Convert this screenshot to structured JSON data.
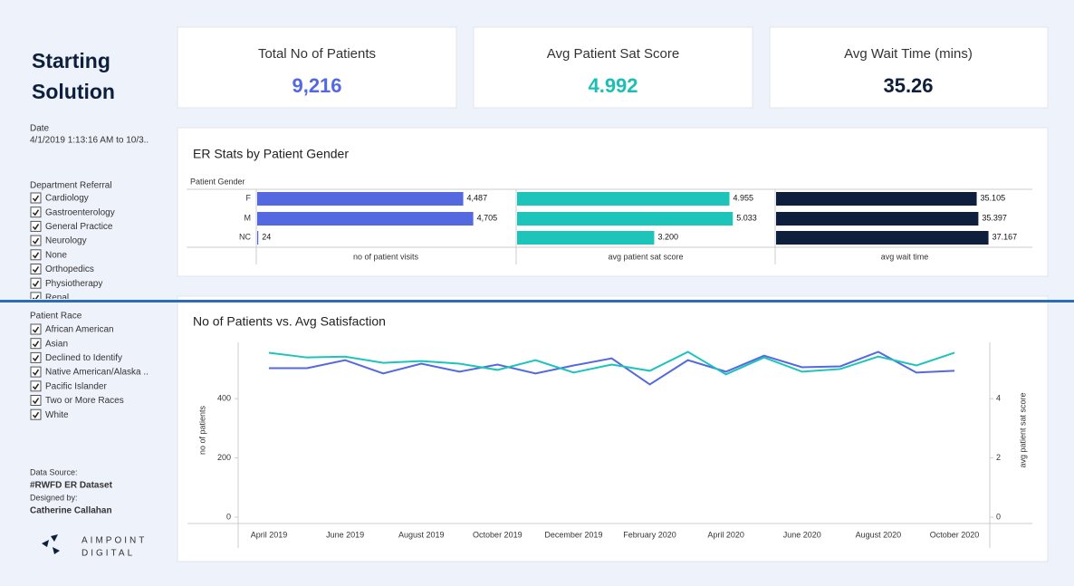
{
  "sidebar": {
    "title_line1": "Starting",
    "title_line2": "Solution",
    "date_label": "Date",
    "date_value": "4/1/2019 1:13:16 AM to 10/3..",
    "department_label": "Department Referral",
    "departments": [
      "Cardiology",
      "Gastroenterology",
      "General Practice",
      "Neurology",
      "None",
      "Orthopedics",
      "Physiotherapy",
      "Renal"
    ],
    "race_label": "Patient Race",
    "races": [
      "African American",
      "Asian",
      "Declined to Identify",
      "Native American/Alaska ..",
      "Pacific Islander",
      "Two or More Races",
      "White"
    ],
    "source_label": "Data Source:",
    "source": "#RWFD ER Dataset",
    "designer_label": "Designed by:",
    "designer": "Catherine Callahan",
    "logo": [
      "AIMPOINT",
      "DIGITAL"
    ]
  },
  "kpis": [
    {
      "label": "Total No of Patients",
      "value": "9,216",
      "color": "#5468e0"
    },
    {
      "label": "Avg Patient Sat Score",
      "value": "4.992",
      "color": "#1cbfb4"
    },
    {
      "label": "Avg Wait Time (mins)",
      "value": "35.26",
      "color": "#0d1f3c"
    }
  ],
  "chart_data": [
    {
      "type": "bar",
      "title": "ER Stats by Patient Gender",
      "category_label": "Patient Gender",
      "categories": [
        "F",
        "M",
        "NC"
      ],
      "series": [
        {
          "name": "no of patient visits",
          "color": "#5468e0",
          "values": [
            4487,
            4705,
            24
          ],
          "value_labels": [
            "4,487",
            "4,705",
            "24"
          ],
          "xlim": [
            0,
            5600
          ]
        },
        {
          "name": "avg patient sat score",
          "color": "#1cc4b9",
          "values": [
            4.955,
            5.033,
            3.2
          ],
          "value_labels": [
            "4.955",
            "5.033",
            "3.200"
          ],
          "xlim": [
            0,
            6
          ]
        },
        {
          "name": "avg wait time",
          "color": "#0d1f3c",
          "values": [
            35.105,
            35.397,
            37.167
          ],
          "value_labels": [
            "35.105",
            "35.397",
            "37.167"
          ],
          "xlim": [
            0,
            45
          ]
        }
      ]
    },
    {
      "type": "line",
      "title": "No of Patients vs. Avg Satisfaction",
      "categories": [
        "April 2019",
        null,
        "June 2019",
        null,
        "August 2019",
        null,
        "October 2019",
        null,
        "December 2019",
        null,
        "February 2020",
        null,
        "April 2020",
        null,
        "June 2020",
        null,
        "August 2020",
        null,
        "October 2020"
      ],
      "series": [
        {
          "name": "no of patients",
          "color": "#5468e0",
          "values": [
            503,
            503,
            530,
            485,
            518,
            491,
            515,
            485,
            512,
            536,
            448,
            530,
            491,
            545,
            506,
            509,
            558,
            488,
            494
          ]
        },
        {
          "name": "avg patient sat score",
          "color": "#1cc4b9",
          "axis": "y2",
          "values": [
            5.55,
            5.39,
            5.42,
            5.21,
            5.27,
            5.18,
            4.97,
            5.3,
            4.88,
            5.15,
            4.94,
            5.58,
            4.82,
            5.39,
            4.91,
            5.0,
            5.42,
            5.12,
            5.55
          ]
        }
      ],
      "ylim": [
        0,
        590
      ],
      "yticks": [
        0,
        200,
        400
      ],
      "y2lim": [
        0,
        5.9
      ],
      "y2ticks": [
        0,
        2,
        4
      ]
    }
  ]
}
